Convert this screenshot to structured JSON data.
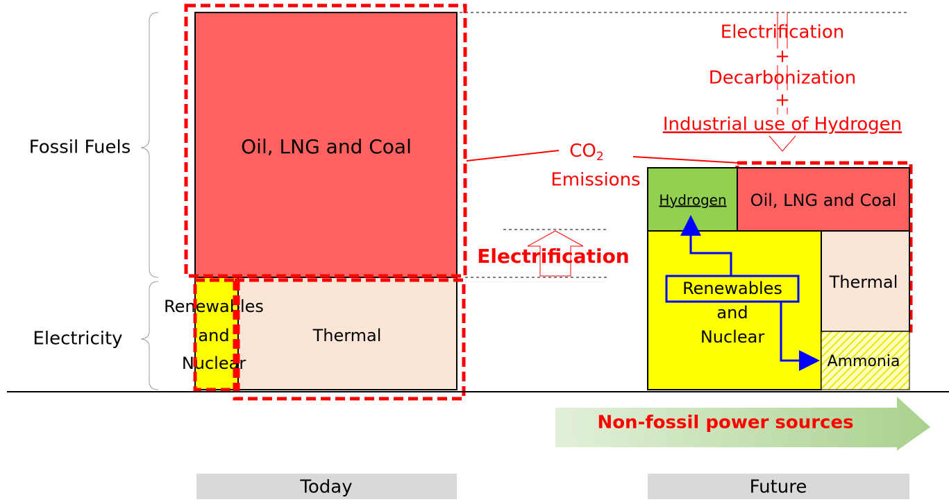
{
  "labels": {
    "fossil_fuels": "Fossil Fuels",
    "electricity": "Electricity"
  },
  "today": {
    "fossil": "Oil, LNG and Coal",
    "renewables": [
      "Renewables",
      "and",
      "Nuclear"
    ],
    "thermal": "Thermal",
    "caption": "Today"
  },
  "electrification_arrow": "Electrification",
  "co2": {
    "base": "CO",
    "sub": "2",
    "line2": "Emissions"
  },
  "future_note": [
    "Electrification",
    "+",
    "Decarbonization",
    "+",
    "Industrial use of Hydrogen"
  ],
  "future": {
    "hydrogen": "Hydrogen",
    "fossil": "Oil, LNG and Coal",
    "renewables": [
      "Renewables",
      "and",
      "Nuclear"
    ],
    "thermal": "Thermal",
    "ammonia": "Ammonia",
    "caption": "Future"
  },
  "non_fossil": "Non-fossil power sources"
}
